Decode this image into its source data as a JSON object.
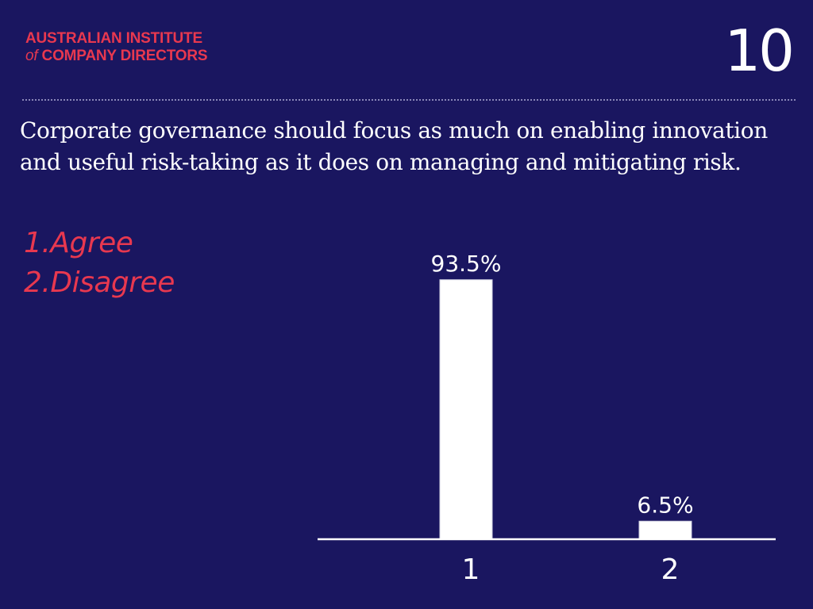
{
  "header": {
    "logo_line1": "AUSTRALIAN INSTITUTE",
    "logo_line2_of": "of",
    "logo_line2_rest": "COMPANY DIRECTORS",
    "slide_number": "10"
  },
  "question": "Corporate governance should focus as much on enabling innovation and useful risk-taking as it does on managing and mitigating risk.",
  "options": [
    "1.Agree",
    "2.Disagree"
  ],
  "colors": {
    "background": "#1a1660",
    "accent": "#e8384f",
    "bars": "#ffffff"
  },
  "chart_data": {
    "type": "bar",
    "categories": [
      "1",
      "2"
    ],
    "values": [
      93.5,
      6.5
    ],
    "data_labels": [
      "93.5%",
      "6.5%"
    ],
    "title": "",
    "xlabel": "",
    "ylabel": "",
    "ylim": [
      0,
      100
    ],
    "grid": false,
    "legend": "none"
  }
}
